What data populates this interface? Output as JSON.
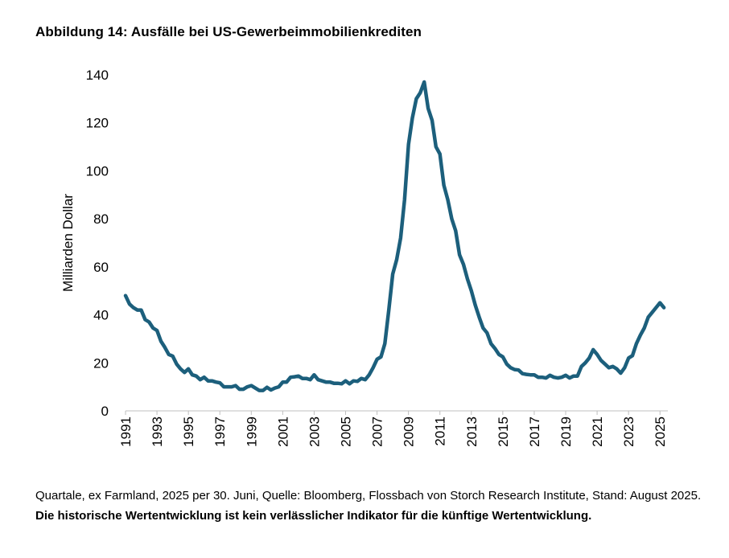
{
  "title": "Abbildung 14: Ausfälle bei US-Gewerbeimmobilienkrediten",
  "footnote": {
    "text": "Quartale, ex Farmland, 2025 per 30. Juni, Quelle: Bloomberg, Flossbach von Storch Research Institute, Stand: Au­gust 2025.",
    "bold": "Die historische Wertentwicklung ist kein verlässlicher Indikator für die künftige Wertentwicklung."
  },
  "colors": {
    "line": "#1c5f7c",
    "axis": "#bfbfbf"
  },
  "chart_data": {
    "type": "line",
    "title": "Abbildung 14: Ausfälle bei US-Gewerbeimmobilienkrediten",
    "xlabel": "",
    "ylabel": "Milliarden Dollar",
    "xlim": [
      1991.0,
      2025.5
    ],
    "ylim": [
      0,
      140
    ],
    "yticks": [
      0,
      20,
      40,
      60,
      80,
      100,
      120,
      140
    ],
    "xticks": [
      "1991",
      "1993",
      "1995",
      "1997",
      "1999",
      "2001",
      "2003",
      "2005",
      "2007",
      "2009",
      "2011",
      "2013",
      "2015",
      "2017",
      "2019",
      "2021",
      "2023",
      "2025"
    ],
    "series": [
      {
        "name": "Ausfälle",
        "points": [
          [
            1991.0,
            48
          ],
          [
            1991.25,
            44.5
          ],
          [
            1991.5,
            43
          ],
          [
            1991.75,
            42
          ],
          [
            1992.0,
            42
          ],
          [
            1992.25,
            38
          ],
          [
            1992.5,
            37
          ],
          [
            1992.75,
            34.5
          ],
          [
            1993.0,
            33.5
          ],
          [
            1993.25,
            29
          ],
          [
            1993.5,
            26.5
          ],
          [
            1993.75,
            23.5
          ],
          [
            1994.0,
            22.8
          ],
          [
            1994.25,
            19.5
          ],
          [
            1994.5,
            17.5
          ],
          [
            1994.75,
            16
          ],
          [
            1995.0,
            17.5
          ],
          [
            1995.25,
            15
          ],
          [
            1995.5,
            14.5
          ],
          [
            1995.75,
            13
          ],
          [
            1996.0,
            14
          ],
          [
            1996.25,
            12.5
          ],
          [
            1996.5,
            12.5
          ],
          [
            1996.75,
            12
          ],
          [
            1997.0,
            11.7
          ],
          [
            1997.25,
            10
          ],
          [
            1997.5,
            10
          ],
          [
            1997.75,
            10
          ],
          [
            1998.0,
            10.5
          ],
          [
            1998.25,
            9
          ],
          [
            1998.5,
            9
          ],
          [
            1998.75,
            10
          ],
          [
            1999.0,
            10.5
          ],
          [
            1999.25,
            9.5
          ],
          [
            1999.5,
            8.5
          ],
          [
            1999.75,
            8.5
          ],
          [
            2000.0,
            9.8
          ],
          [
            2000.25,
            8.7
          ],
          [
            2000.5,
            9.5
          ],
          [
            2000.75,
            10
          ],
          [
            2001.0,
            12
          ],
          [
            2001.25,
            12
          ],
          [
            2001.5,
            14
          ],
          [
            2001.75,
            14.2
          ],
          [
            2002.0,
            14.5
          ],
          [
            2002.25,
            13.5
          ],
          [
            2002.5,
            13.5
          ],
          [
            2002.75,
            13
          ],
          [
            2003.0,
            15
          ],
          [
            2003.25,
            13
          ],
          [
            2003.5,
            12.5
          ],
          [
            2003.75,
            12
          ],
          [
            2004.0,
            12
          ],
          [
            2004.25,
            11.5
          ],
          [
            2004.5,
            11.5
          ],
          [
            2004.75,
            11.3
          ],
          [
            2005.0,
            12.5
          ],
          [
            2005.25,
            11.3
          ],
          [
            2005.5,
            12.5
          ],
          [
            2005.75,
            12.3
          ],
          [
            2006.0,
            13.5
          ],
          [
            2006.25,
            13
          ],
          [
            2006.5,
            15
          ],
          [
            2006.75,
            18
          ],
          [
            2007.0,
            21.5
          ],
          [
            2007.25,
            22.5
          ],
          [
            2007.5,
            28
          ],
          [
            2007.75,
            42
          ],
          [
            2008.0,
            57
          ],
          [
            2008.25,
            63
          ],
          [
            2008.5,
            72
          ],
          [
            2008.75,
            88
          ],
          [
            2009.0,
            111
          ],
          [
            2009.25,
            122
          ],
          [
            2009.5,
            130
          ],
          [
            2009.75,
            132.5
          ],
          [
            2010.0,
            137
          ],
          [
            2010.25,
            126
          ],
          [
            2010.5,
            121
          ],
          [
            2010.75,
            110
          ],
          [
            2011.0,
            107
          ],
          [
            2011.25,
            94
          ],
          [
            2011.5,
            88
          ],
          [
            2011.75,
            80
          ],
          [
            2012.0,
            75
          ],
          [
            2012.25,
            65
          ],
          [
            2012.5,
            61
          ],
          [
            2012.75,
            55
          ],
          [
            2013.0,
            50
          ],
          [
            2013.25,
            44
          ],
          [
            2013.5,
            39
          ],
          [
            2013.75,
            34.5
          ],
          [
            2014.0,
            32.5
          ],
          [
            2014.25,
            28
          ],
          [
            2014.5,
            26
          ],
          [
            2014.75,
            23.5
          ],
          [
            2015.0,
            22.5
          ],
          [
            2015.25,
            19.5
          ],
          [
            2015.5,
            18
          ],
          [
            2015.75,
            17.2
          ],
          [
            2016.0,
            17
          ],
          [
            2016.25,
            15.5
          ],
          [
            2016.5,
            15.2
          ],
          [
            2016.75,
            15
          ],
          [
            2017.0,
            15
          ],
          [
            2017.25,
            14
          ],
          [
            2017.5,
            14
          ],
          [
            2017.75,
            13.7
          ],
          [
            2018.0,
            14.8
          ],
          [
            2018.25,
            14
          ],
          [
            2018.5,
            13.7
          ],
          [
            2018.75,
            14
          ],
          [
            2019.0,
            14.8
          ],
          [
            2019.25,
            13.7
          ],
          [
            2019.5,
            14.5
          ],
          [
            2019.75,
            14.5
          ],
          [
            2020.0,
            18.5
          ],
          [
            2020.25,
            20
          ],
          [
            2020.5,
            22
          ],
          [
            2020.75,
            25.5
          ],
          [
            2021.0,
            23.5
          ],
          [
            2021.25,
            21
          ],
          [
            2021.5,
            19.5
          ],
          [
            2021.75,
            18
          ],
          [
            2022.0,
            18.5
          ],
          [
            2022.25,
            17.5
          ],
          [
            2022.5,
            15.7
          ],
          [
            2022.75,
            18
          ],
          [
            2023.0,
            22
          ],
          [
            2023.25,
            23
          ],
          [
            2023.5,
            28
          ],
          [
            2023.75,
            31.5
          ],
          [
            2024.0,
            34.5
          ],
          [
            2024.25,
            39
          ],
          [
            2024.5,
            41
          ],
          [
            2024.75,
            43
          ],
          [
            2025.0,
            45
          ],
          [
            2025.25,
            43
          ]
        ]
      }
    ]
  }
}
